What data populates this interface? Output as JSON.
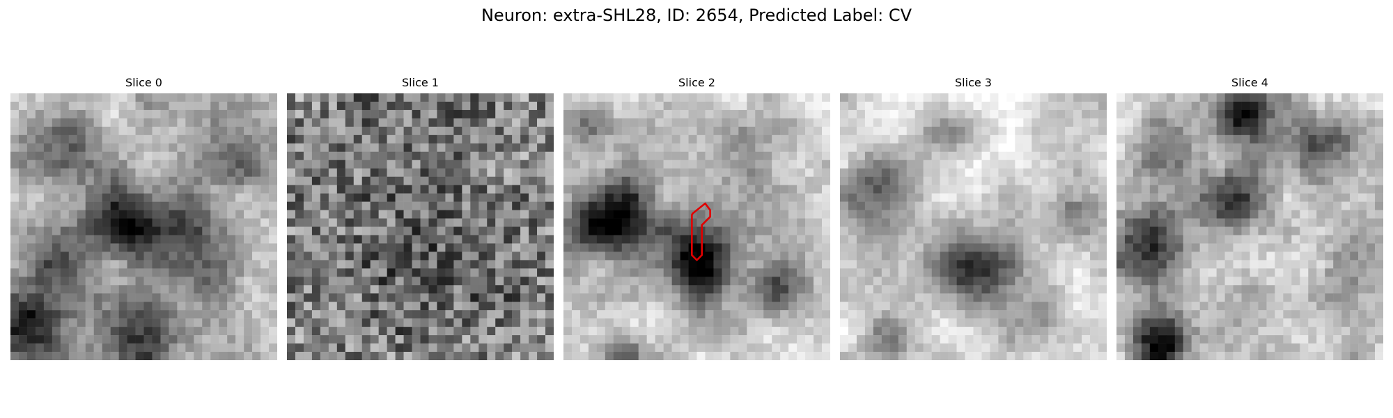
{
  "figure": {
    "title": "Neuron: extra-SHL28, ID: 2654, Predicted Label: CV"
  },
  "panels": [
    {
      "title": "Slice 0"
    },
    {
      "title": "Slice 1"
    },
    {
      "title": "Slice 2"
    },
    {
      "title": "Slice 3"
    },
    {
      "title": "Slice 4"
    }
  ],
  "colors": {
    "background": "#ffffff",
    "roi_outline": "#e00000"
  }
}
